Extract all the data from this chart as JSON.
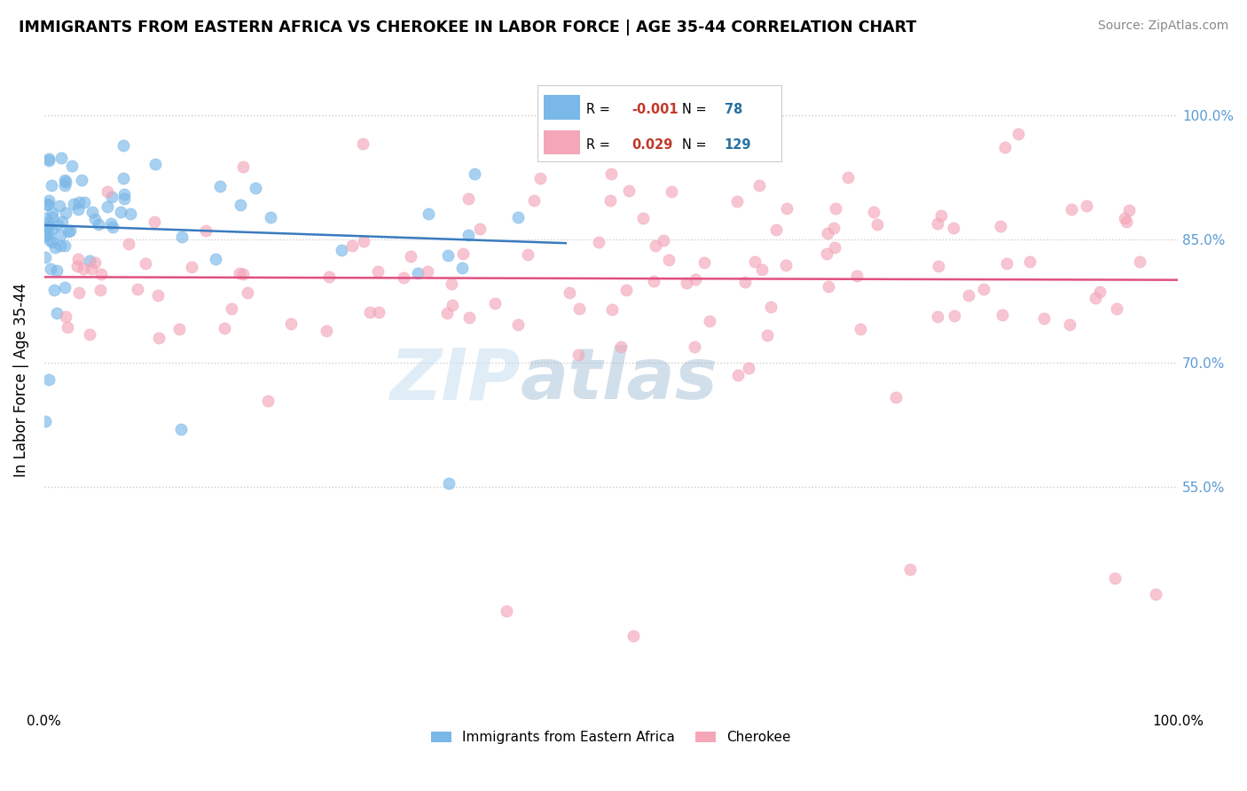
{
  "title": "IMMIGRANTS FROM EASTERN AFRICA VS CHEROKEE IN LABOR FORCE | AGE 35-44 CORRELATION CHART",
  "source": "Source: ZipAtlas.com",
  "ylabel": "In Labor Force | Age 35-44",
  "legend_blue_label": "Immigrants from Eastern Africa",
  "legend_pink_label": "Cherokee",
  "blue_R": -0.001,
  "blue_N": 78,
  "pink_R": 0.029,
  "pink_N": 129,
  "blue_color": "#7ab8e8",
  "pink_color": "#f4a7b9",
  "blue_line_color": "#3a7bbf",
  "pink_line_color": "#e05080",
  "xlim": [
    0.0,
    1.0
  ],
  "ylim": [
    0.28,
    1.08
  ],
  "yticks": [
    0.55,
    0.7,
    0.85,
    1.0
  ],
  "ytick_labels": [
    "55.0%",
    "70.0%",
    "85.0%",
    "100.0%"
  ],
  "seed": 42
}
